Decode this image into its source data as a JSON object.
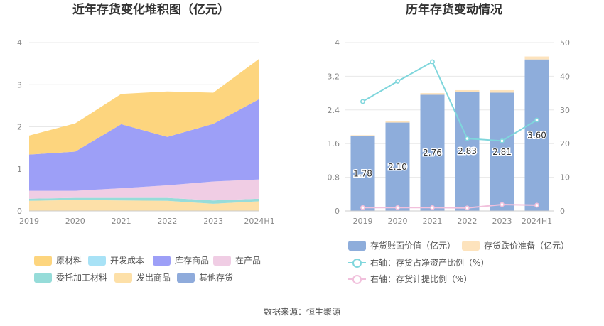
{
  "source_text": "数据来源：恒生聚源",
  "colors": {
    "grid": "#e8e8e8",
    "axis_text": "#888888",
    "axis_line": "#cccccc"
  },
  "chart_data": [
    {
      "type": "area",
      "stacked": true,
      "title": "近年存货变化堆积图（亿元）",
      "categories": [
        "2019",
        "2020",
        "2021",
        "2022",
        "2023",
        "2024H1"
      ],
      "ylim": [
        0,
        4
      ],
      "yticks": [
        0,
        1,
        2,
        3,
        4
      ],
      "grid": true,
      "legend_position": "bottom",
      "series": [
        {
          "name": "发出商品",
          "color": "#fde0a8",
          "values": [
            0.24,
            0.26,
            0.25,
            0.24,
            0.17,
            0.23
          ]
        },
        {
          "name": "委托加工材料",
          "color": "#96dcd9",
          "values": [
            0.05,
            0.05,
            0.06,
            0.07,
            0.08,
            0.06
          ]
        },
        {
          "name": "开发成本",
          "color": "#a8e2f6",
          "values": [
            0.0,
            0.0,
            0.0,
            0.0,
            0.0,
            0.0
          ]
        },
        {
          "name": "在产品",
          "color": "#f0cde4",
          "values": [
            0.19,
            0.17,
            0.23,
            0.3,
            0.45,
            0.46
          ]
        },
        {
          "name": "库存商品",
          "color": "#9d9ff7",
          "values": [
            0.86,
            0.93,
            1.52,
            1.15,
            1.37,
            1.91
          ]
        },
        {
          "name": "其他存货",
          "color": "#8fabdb",
          "values": [
            0.0,
            0.0,
            0.0,
            0.0,
            0.0,
            0.0
          ]
        },
        {
          "name": "原材料",
          "color": "#fdd57e",
          "values": [
            0.45,
            0.67,
            0.72,
            1.08,
            0.74,
            0.96
          ]
        }
      ],
      "legend_order": [
        "原材料",
        "开发成本",
        "库存商品",
        "在产品",
        "委托加工材料",
        "发出商品",
        "其他存货"
      ]
    },
    {
      "type": "bar",
      "stacked": true,
      "title": "历年存货变动情况",
      "categories": [
        "2019",
        "2020",
        "2021",
        "2022",
        "2023",
        "2024H1"
      ],
      "ylim": [
        0,
        4
      ],
      "yticks": [
        "0",
        "0.8",
        "1.6",
        "2.4",
        "3.2",
        "4"
      ],
      "y2lim": [
        0,
        50
      ],
      "y2ticks": [
        0,
        10,
        20,
        30,
        40,
        50
      ],
      "grid": true,
      "legend_position": "bottom",
      "bar_series": [
        {
          "name": "存货账面价值（亿元）",
          "color": "#8eaddb",
          "values": [
            1.78,
            2.1,
            2.76,
            2.83,
            2.81,
            3.6
          ],
          "labels": [
            "1.78",
            "2.10",
            "2.76",
            "2.83",
            "2.81",
            "3.60"
          ]
        },
        {
          "name": "存货跌价准备（亿元）",
          "color": "#fde3bd",
          "values": [
            0.02,
            0.03,
            0.04,
            0.04,
            0.06,
            0.07
          ]
        }
      ],
      "line_series": [
        {
          "name": "右轴：存货占净资产比例（%）",
          "color": "#7fd6dc",
          "axis": "right",
          "values": [
            32.5,
            38.5,
            44.3,
            21.5,
            20.8,
            27.0
          ]
        },
        {
          "name": "右轴：存货计提比例（%）",
          "color": "#f1c0dc",
          "axis": "right",
          "values": [
            1.0,
            1.0,
            1.0,
            0.9,
            1.9,
            1.7
          ]
        }
      ]
    }
  ]
}
